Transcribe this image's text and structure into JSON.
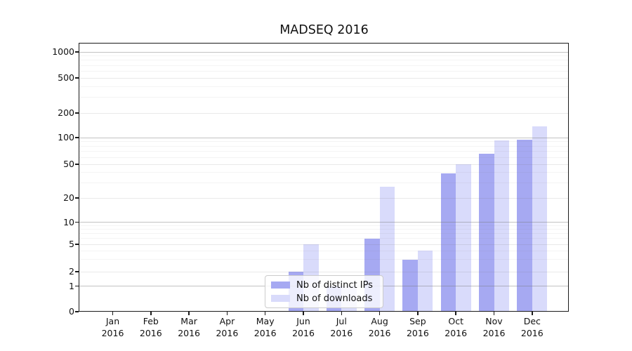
{
  "title": "MADSEQ 2016",
  "legend": {
    "items": [
      {
        "key": "ips",
        "label": "Nb of distinct IPs"
      },
      {
        "key": "downloads",
        "label": "Nb of downloads"
      }
    ]
  },
  "colors": {
    "ips": "#a6a9f2",
    "downloads": "#d9dbfb",
    "grid_major": "rgba(120,120,120,0.45)",
    "grid_mid": "rgba(120,120,120,0.16)",
    "grid_minor": "rgba(120,120,120,0.08)",
    "axis": "#1a1a1a",
    "legend_border": "#cccccc"
  },
  "chart_data": {
    "type": "bar",
    "title": "MADSEQ 2016",
    "categories": [
      "Jan 2016",
      "Feb 2016",
      "Mar 2016",
      "Apr 2016",
      "May 2016",
      "Jun 2016",
      "Jul 2016",
      "Aug 2016",
      "Sep 2016",
      "Oct 2016",
      "Nov 2016",
      "Dec 2016"
    ],
    "series": [
      {
        "name": "Nb of distinct IPs",
        "values": [
          0,
          0,
          0,
          0,
          0,
          2,
          1,
          6,
          3,
          39,
          66,
          95
        ]
      },
      {
        "name": "Nb of downloads",
        "values": [
          0,
          0,
          0,
          0,
          0,
          5,
          1,
          27,
          4,
          50,
          93,
          137
        ]
      }
    ],
    "xlabel": "",
    "ylabel": "",
    "yscale": "symlog",
    "ylim": [
      0,
      1300
    ],
    "yticks": [
      1000,
      500,
      200,
      100,
      50,
      20,
      10,
      5,
      2,
      1,
      0
    ],
    "grid": true,
    "legend_position": "lower center"
  }
}
